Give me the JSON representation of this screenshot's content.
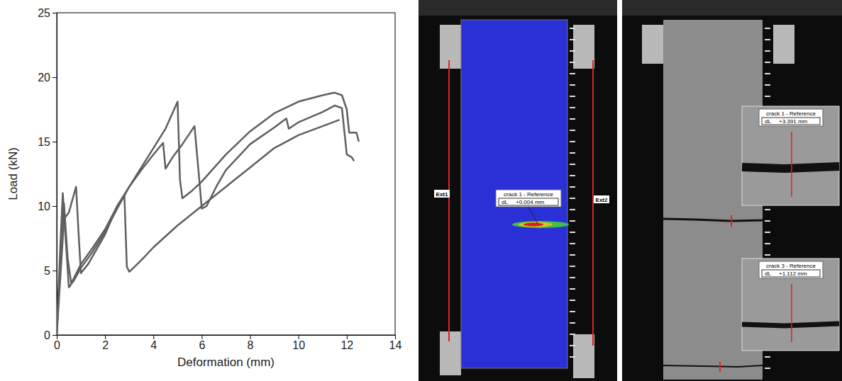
{
  "chart_data": {
    "type": "line",
    "x_label": "Deformation (mm)",
    "y_label": "Load (kN)",
    "xlim": [
      0,
      14
    ],
    "ylim": [
      0,
      25
    ],
    "xticks": [
      0,
      2,
      4,
      6,
      8,
      10,
      12,
      14
    ],
    "yticks": [
      0,
      5,
      10,
      15,
      20,
      25
    ],
    "grid": false,
    "series": [
      {
        "color": "#5f5f5f",
        "x": [
          0,
          0.15,
          0.25,
          0.35,
          0.5,
          0.7,
          1.0,
          1.5,
          2,
          2.5,
          3,
          3.5,
          4,
          4.5,
          5,
          5.1,
          5.2,
          5.6,
          6,
          7,
          8,
          9,
          10,
          11,
          11.5,
          11.8,
          12.0,
          12.1,
          12.4,
          12.5
        ],
        "values": [
          0,
          7,
          11.0,
          8,
          3.7,
          4.2,
          5.2,
          6.5,
          8,
          9.8,
          11.5,
          13,
          14.5,
          16,
          18.1,
          12,
          10.6,
          11.2,
          11.9,
          14,
          15.8,
          17.2,
          18.1,
          18.6,
          18.8,
          18.6,
          17.5,
          15.7,
          15.7,
          15.0
        ]
      },
      {
        "color": "#5f5f5f",
        "x": [
          0,
          0.2,
          0.3,
          0.45,
          0.6,
          1.0,
          1.5,
          2,
          2.5,
          3,
          3.5,
          4,
          4.4,
          4.5,
          4.8,
          5.2,
          5.7,
          5.9,
          6.0,
          6.2,
          6.6,
          7,
          8,
          9,
          9.5,
          9.6,
          10,
          11,
          11.5,
          11.8,
          12.0,
          12.2,
          12.3
        ],
        "values": [
          0,
          8,
          10.2,
          6,
          4.0,
          5.5,
          6.8,
          8.2,
          10,
          11.5,
          12.8,
          14,
          14.9,
          12.9,
          13.8,
          14.8,
          16.2,
          12,
          9.8,
          10,
          11.5,
          12.8,
          14.8,
          16.1,
          16.8,
          16.0,
          16.5,
          17.3,
          17.8,
          17.6,
          14.0,
          13.8,
          13.5
        ]
      },
      {
        "color": "#5f5f5f",
        "x": [
          0,
          0.3,
          0.5,
          0.8,
          0.9,
          1.0,
          1.3,
          2,
          2.5,
          2.8,
          2.85,
          2.9,
          3.0,
          3.5,
          4,
          5,
          6,
          7,
          8,
          9,
          10,
          11,
          11.7
        ],
        "values": [
          0,
          9,
          9.5,
          11.5,
          8,
          4.8,
          5.5,
          7.8,
          10,
          10.8,
          8,
          5.3,
          4.9,
          5.8,
          6.8,
          8.5,
          10,
          11.5,
          13,
          14.5,
          15.5,
          16.2,
          16.7
        ]
      }
    ]
  },
  "images": [
    {
      "labels": [
        "Ext1",
        "Ext2"
      ],
      "callouts": [
        {
          "title": "crack 1 - Reference",
          "key": "dL",
          "value": "+0.004 mm"
        }
      ]
    },
    {
      "callouts": [
        {
          "title": "crack 1 - Reference",
          "key": "dL",
          "value": "+3.391 mm"
        },
        {
          "title": "crack 3 - Reference",
          "key": "dL",
          "value": "+1.112 mm"
        }
      ]
    }
  ]
}
